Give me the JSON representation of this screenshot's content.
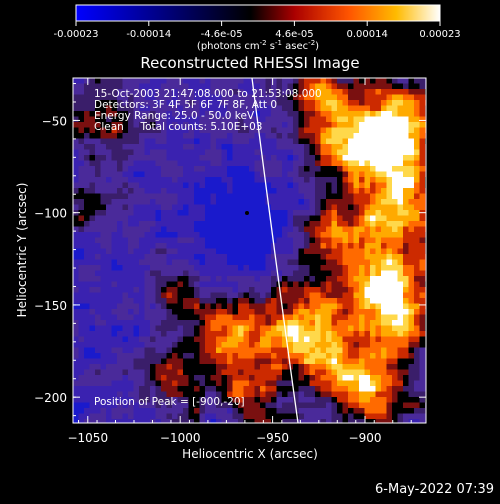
{
  "colorbar": {
    "ticks": [
      "-0.00023",
      "-0.00014",
      "-4.6e-05",
      "4.6e-05",
      "0.00014",
      "0.00023"
    ],
    "unit_prefix": "(photons cm",
    "unit_exp1": "-2",
    "unit_mid1": " s",
    "unit_exp2": "-1",
    "unit_mid2": " asec",
    "unit_exp3": "-2",
    "unit_suffix": ")"
  },
  "image": {
    "title": "Reconstructed RHESSI Image",
    "xlabel": "Heliocentric X (arcsec)",
    "ylabel": "Heliocentric Y (arcsec)",
    "xlim": [
      -1058,
      -867
    ],
    "ylim": [
      -214,
      -27
    ],
    "x_ticks": [
      -1050,
      -1000,
      -950,
      -900
    ],
    "x_tick_labels": [
      "−1050",
      "−1000",
      "−950",
      "−900"
    ],
    "y_ticks": [
      -50,
      -100,
      -150,
      -200
    ],
    "y_tick_labels": [
      "−50",
      "−100",
      "−150",
      "−200"
    ],
    "annotations": [
      "15-Oct-2003 21:47:08.000 to 21:53:08.000",
      "Detectors: 3F 4F 5F 6F 7F 8F, Att 0",
      "Energy Range: 25.0 - 50.0 keV",
      "Clean     Total counts: 5.10E+03"
    ],
    "peak_label": "Position of Peak = [-900,-20]",
    "limb_color": "#ffffff",
    "colors": {
      "low": "#0000ff",
      "mid": "#000000",
      "high": "#ffffff",
      "orange": "#ff8800",
      "red": "#dd2200"
    }
  },
  "footer": {
    "date": "6-May-2022 07:39"
  }
}
